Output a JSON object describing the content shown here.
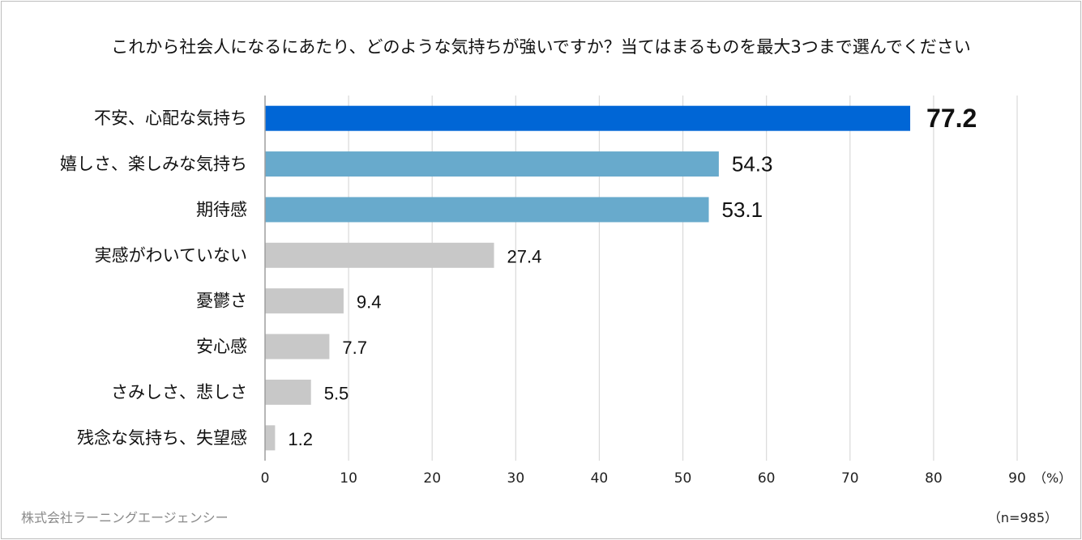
{
  "chart_data": {
    "type": "bar",
    "orientation": "horizontal",
    "title": "これから社会人になるにあたり、どのような気持ちが強いですか？当てはまるものを最大3つまで選んでください",
    "categories": [
      "不安、心配な気持ち",
      "嬉しさ、楽しみな気持ち",
      "期待感",
      "実感がわいていない",
      "憂鬱さ",
      "安心感",
      "さみしさ、悲しさ",
      "残念な気持ち、失望感"
    ],
    "values": [
      77.2,
      54.3,
      53.1,
      27.4,
      9.4,
      7.7,
      5.5,
      1.2
    ],
    "value_labels": [
      "77.2",
      "54.3",
      "53.1",
      "27.4",
      "9.4",
      "7.7",
      "5.5",
      "1.2"
    ],
    "bar_colors": [
      "#0066d6",
      "#68aacc",
      "#68aacc",
      "#c8c8c8",
      "#c8c8c8",
      "#c8c8c8",
      "#c8c8c8",
      "#c8c8c8"
    ],
    "x_ticks": [
      "0",
      "10",
      "20",
      "30",
      "40",
      "50",
      "60",
      "70",
      "80",
      "90"
    ],
    "xlim": [
      0,
      90
    ],
    "x_unit": "（%）",
    "grid": true,
    "legend": "none"
  },
  "footer": {
    "source": "株式会社ラーニングエージェンシー",
    "sample_size": "（n=985）"
  },
  "colors": {
    "grid": "#d9d9d9",
    "axis": "#9e9e9e",
    "text": "#111111"
  }
}
